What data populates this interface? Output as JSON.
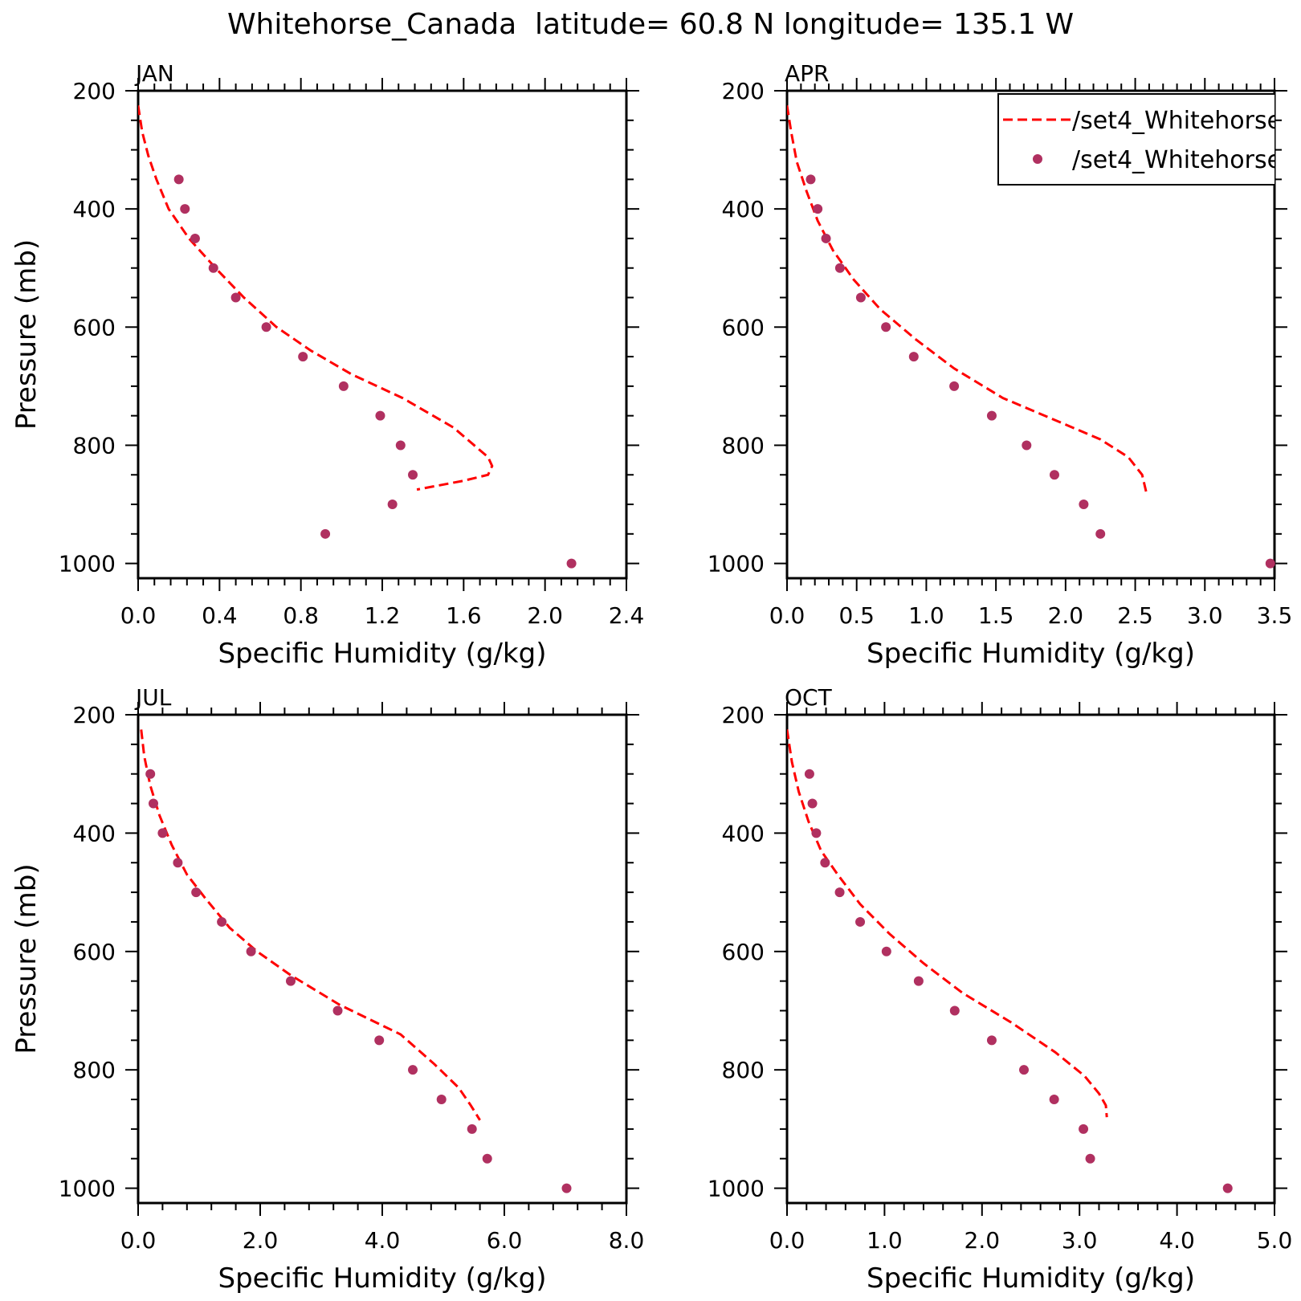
{
  "title": "Whitehorse_Canada  latitude= 60.8 N longitude= 135.1 W",
  "legend": {
    "entries": [
      {
        "label": "/set4_Whitehorse",
        "style": "dashed-line",
        "color": "#ff0000"
      },
      {
        "label": "/set4_Whitehorse",
        "style": "dot",
        "color": "#b03060"
      }
    ]
  },
  "colors": {
    "model": "#ff0000",
    "obs": "#b03060",
    "axes": "#000000"
  },
  "chart_data": [
    {
      "type": "line",
      "panel": "JAN",
      "xlabel": "Specific Humidity (g/kg)",
      "ylabel": "Pressure (mb)",
      "xlim": [
        0,
        2.4
      ],
      "ylim": [
        1025,
        200
      ],
      "xticks": [
        "0.0",
        "0.4",
        "0.8",
        "1.2",
        "1.6",
        "2.0",
        "2.4"
      ],
      "yticks": [
        "200",
        "400",
        "600",
        "800",
        "1000"
      ],
      "series": [
        {
          "style": "dashed-line",
          "x": [
            0.0,
            0.02,
            0.05,
            0.09,
            0.15,
            0.25,
            0.38,
            0.52,
            0.68,
            0.85,
            1.05,
            1.3,
            1.55,
            1.72,
            1.74,
            1.72,
            1.6,
            1.37
          ],
          "y": [
            225,
            270,
            310,
            350,
            400,
            450,
            500,
            550,
            600,
            640,
            680,
            720,
            770,
            820,
            835,
            850,
            860,
            875
          ]
        },
        {
          "style": "dot",
          "x": [
            0.2,
            0.23,
            0.28,
            0.37,
            0.48,
            0.63,
            0.81,
            1.01,
            1.19,
            1.29,
            1.35,
            1.25,
            0.92,
            2.13
          ],
          "y": [
            350,
            400,
            450,
            500,
            550,
            600,
            650,
            700,
            750,
            800,
            850,
            900,
            950,
            1000
          ]
        }
      ]
    },
    {
      "type": "line",
      "panel": "APR",
      "xlabel": "Specific Humidity (g/kg)",
      "ylabel": "",
      "xlim": [
        0,
        3.5
      ],
      "ylim": [
        1025,
        200
      ],
      "xticks": [
        "0.0",
        "0.5",
        "1.0",
        "1.5",
        "2.0",
        "2.5",
        "3.0",
        "3.5"
      ],
      "yticks": [
        "200",
        "400",
        "600",
        "800",
        "1000"
      ],
      "series": [
        {
          "style": "dashed-line",
          "x": [
            0.0,
            0.03,
            0.07,
            0.14,
            0.22,
            0.33,
            0.48,
            0.67,
            0.92,
            1.2,
            1.55,
            1.95,
            2.25,
            2.45,
            2.55,
            2.58
          ],
          "y": [
            225,
            270,
            320,
            370,
            420,
            470,
            520,
            570,
            620,
            670,
            720,
            760,
            790,
            820,
            850,
            880
          ]
        },
        {
          "style": "dot",
          "x": [
            0.17,
            0.22,
            0.28,
            0.38,
            0.53,
            0.71,
            0.91,
            1.2,
            1.47,
            1.72,
            1.92,
            2.13,
            2.25,
            3.47
          ],
          "y": [
            350,
            400,
            450,
            500,
            550,
            600,
            650,
            700,
            750,
            800,
            850,
            900,
            950,
            1000
          ]
        }
      ]
    },
    {
      "type": "line",
      "panel": "JUL",
      "xlabel": "Specific Humidity (g/kg)",
      "ylabel": "Pressure (mb)",
      "xlim": [
        0,
        8.0
      ],
      "ylim": [
        1025,
        200
      ],
      "xticks": [
        "0.0",
        "2.0",
        "4.0",
        "6.0",
        "8.0"
      ],
      "yticks": [
        "200",
        "400",
        "600",
        "800",
        "1000"
      ],
      "series": [
        {
          "style": "dashed-line",
          "x": [
            0.05,
            0.1,
            0.2,
            0.35,
            0.55,
            0.8,
            1.1,
            1.5,
            1.95,
            2.5,
            3.3,
            4.3,
            4.85,
            5.25,
            5.45,
            5.6
          ],
          "y": [
            225,
            270,
            320,
            370,
            420,
            470,
            510,
            560,
            600,
            640,
            690,
            740,
            790,
            830,
            860,
            885
          ]
        },
        {
          "style": "dot",
          "x": [
            0.2,
            0.25,
            0.4,
            0.65,
            0.95,
            1.37,
            1.85,
            2.5,
            3.27,
            3.95,
            4.5,
            4.97,
            5.47,
            5.72,
            7.02
          ],
          "y": [
            300,
            350,
            400,
            450,
            500,
            550,
            600,
            650,
            700,
            750,
            800,
            850,
            900,
            950,
            1000
          ]
        }
      ]
    },
    {
      "type": "line",
      "panel": "OCT",
      "xlabel": "Specific Humidity (g/kg)",
      "ylabel": "",
      "xlim": [
        0,
        5.0
      ],
      "ylim": [
        1025,
        200
      ],
      "xticks": [
        "0.0",
        "1.0",
        "2.0",
        "3.0",
        "4.0",
        "5.0"
      ],
      "yticks": [
        "200",
        "400",
        "600",
        "800",
        "1000"
      ],
      "series": [
        {
          "style": "dashed-line",
          "x": [
            0.0,
            0.05,
            0.12,
            0.22,
            0.35,
            0.52,
            0.75,
            1.05,
            1.4,
            1.8,
            2.3,
            2.75,
            3.05,
            3.2,
            3.27,
            3.28
          ],
          "y": [
            225,
            280,
            330,
            380,
            430,
            470,
            520,
            570,
            620,
            670,
            720,
            770,
            810,
            840,
            860,
            880
          ]
        },
        {
          "style": "dot",
          "x": [
            0.23,
            0.26,
            0.3,
            0.39,
            0.54,
            0.75,
            1.02,
            1.35,
            1.72,
            2.1,
            2.43,
            2.74,
            3.04,
            3.11,
            4.52
          ],
          "y": [
            300,
            350,
            400,
            450,
            500,
            550,
            600,
            650,
            700,
            750,
            800,
            850,
            900,
            950,
            1000
          ]
        }
      ]
    }
  ]
}
